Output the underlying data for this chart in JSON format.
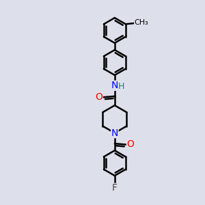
{
  "background_color": "#dde0ea",
  "bond_color": "#000000",
  "bond_width": 1.8,
  "atom_colors": {
    "O": "#ff0000",
    "N": "#0000ff",
    "H": "#008888",
    "F": "#444444",
    "C": "#000000"
  },
  "font_size_atoms": 10,
  "ring_r": 0.62,
  "scale": 1.0
}
